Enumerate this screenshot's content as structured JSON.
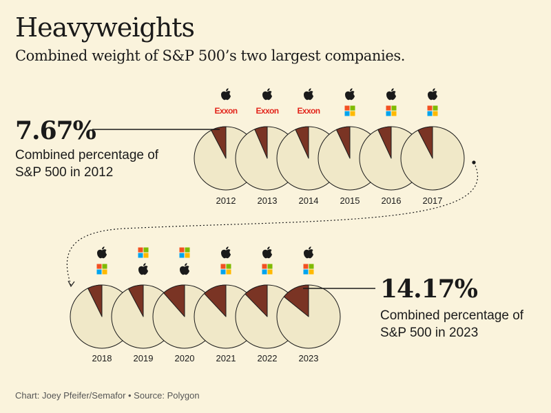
{
  "header": {
    "title": "Heavyweights",
    "subtitle": "Combined weight of S&P 500’s two largest companies."
  },
  "annotations": {
    "start": {
      "value": "7.67%",
      "description": "Combined percentage of S&P 500 in 2012"
    },
    "end": {
      "value": "14.17%",
      "description": "Combined percentage of S&P 500 in 2023"
    }
  },
  "footer": {
    "credit": "Chart: Joey Pfeifer/Semafor • Source: Polygon"
  },
  "colors": {
    "background": "#faf3dc",
    "pie_base": "#f0e8c8",
    "pie_slice": "#7a3424",
    "outline": "#1a1a1a",
    "exxon": "#e2231a",
    "ms_red": "#f25022",
    "ms_green": "#7fba00",
    "ms_blue": "#00a4ef",
    "ms_yellow": "#ffb900"
  },
  "chart_data": {
    "type": "pie",
    "title": "Heavyweights",
    "unit": "percent of S&P 500",
    "years": [
      "2012",
      "2013",
      "2014",
      "2015",
      "2016",
      "2017",
      "2018",
      "2019",
      "2020",
      "2021",
      "2022",
      "2023"
    ],
    "values": [
      7.67,
      6.5,
      6.8,
      7.0,
      6.9,
      7.6,
      7.3,
      7.8,
      11.5,
      12.0,
      12.3,
      14.17
    ],
    "top_companies": [
      [
        "apple-icon",
        "exxon-logo"
      ],
      [
        "apple-icon",
        "exxon-logo"
      ],
      [
        "apple-icon",
        "exxon-logo"
      ],
      [
        "apple-icon",
        "microsoft-icon"
      ],
      [
        "apple-icon",
        "microsoft-icon"
      ],
      [
        "apple-icon",
        "microsoft-icon"
      ],
      [
        "apple-icon",
        "microsoft-icon"
      ],
      [
        "microsoft-icon",
        "apple-icon"
      ],
      [
        "microsoft-icon",
        "apple-icon"
      ],
      [
        "apple-icon",
        "microsoft-icon"
      ],
      [
        "apple-icon",
        "microsoft-icon"
      ],
      [
        "apple-icon",
        "microsoft-icon"
      ]
    ],
    "exxon_label": "Exxon"
  }
}
